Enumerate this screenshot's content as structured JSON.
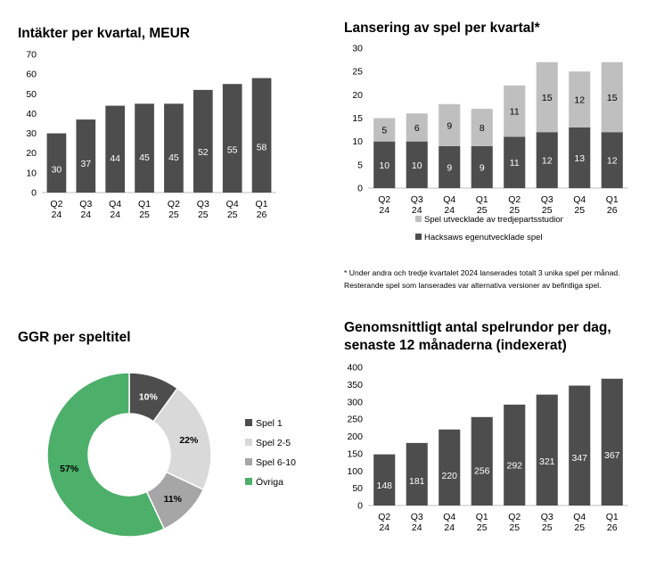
{
  "chart_data": [
    {
      "type": "bar",
      "title": "Intäkter per kvartal, MEUR",
      "categories": [
        [
          "Q2",
          "24"
        ],
        [
          "Q3",
          "24"
        ],
        [
          "Q4",
          "24"
        ],
        [
          "Q1",
          "25"
        ],
        [
          "Q2",
          "25"
        ],
        [
          "Q3",
          "25"
        ],
        [
          "Q4",
          "25"
        ],
        [
          "Q1",
          "26"
        ]
      ],
      "values": [
        30,
        37,
        44,
        45,
        45,
        52,
        55,
        58
      ],
      "ylim": [
        0,
        70
      ],
      "yticks": [
        0,
        10,
        20,
        30,
        40,
        50,
        60,
        70
      ],
      "color": "#4d4d4d"
    },
    {
      "type": "bar",
      "stacked": true,
      "title": "Lansering av spel per kvartal*",
      "categories": [
        [
          "Q2",
          "24"
        ],
        [
          "Q3",
          "24"
        ],
        [
          "Q4",
          "24"
        ],
        [
          "Q1",
          "25"
        ],
        [
          "Q2",
          "25"
        ],
        [
          "Q3",
          "25"
        ],
        [
          "Q4",
          "25"
        ],
        [
          "Q1",
          "26"
        ]
      ],
      "series": [
        {
          "name": "Hacksaws egenutvecklade spel",
          "values": [
            10,
            10,
            9,
            9,
            11,
            12,
            13,
            12
          ],
          "color": "#4d4d4d"
        },
        {
          "name": "Spel utvecklade av tredjepartsstudior",
          "values": [
            5,
            6,
            9,
            8,
            11,
            15,
            12,
            15
          ],
          "color": "#bfbfbf"
        }
      ],
      "ylim": [
        0,
        30
      ],
      "yticks": [
        0,
        5,
        10,
        15,
        20,
        25,
        30
      ],
      "footnote": "* Under andra och tredje kvartalet 2024 lanserades totalt 3 unika spel per månad. Resterande spel som lanserades var alternativa versioner av befintliga spel."
    },
    {
      "type": "pie",
      "title": "GGR per speltitel",
      "slices": [
        {
          "label": "Spel 1",
          "value": 10,
          "text": "10%",
          "color": "#4d4d4d"
        },
        {
          "label": "Spel 2-5",
          "value": 22,
          "text": "22%",
          "color": "#d9d9d9"
        },
        {
          "label": "Spel 6-10",
          "value": 11,
          "text": "11%",
          "color": "#a6a6a6"
        },
        {
          "label": "Övriga",
          "value": 57,
          "text": "57%",
          "color": "#4caf6a"
        }
      ]
    },
    {
      "type": "bar",
      "title": "Genomsnittligt antal spelrundor per dag, senaste 12 månaderna (indexerat)",
      "title_lines": [
        "Genomsnittligt antal spelrundor per dag,",
        "senaste 12 månaderna (indexerat)"
      ],
      "categories": [
        [
          "Q2",
          "24"
        ],
        [
          "Q3",
          "24"
        ],
        [
          "Q4",
          "24"
        ],
        [
          "Q1",
          "25"
        ],
        [
          "Q2",
          "25"
        ],
        [
          "Q3",
          "25"
        ],
        [
          "Q4",
          "25"
        ],
        [
          "Q1",
          "26"
        ]
      ],
      "values": [
        148,
        181,
        220,
        256,
        292,
        321,
        347,
        367
      ],
      "ylim": [
        0,
        400
      ],
      "yticks": [
        0,
        50,
        100,
        150,
        200,
        250,
        300,
        350,
        400
      ],
      "color": "#4d4d4d"
    }
  ]
}
